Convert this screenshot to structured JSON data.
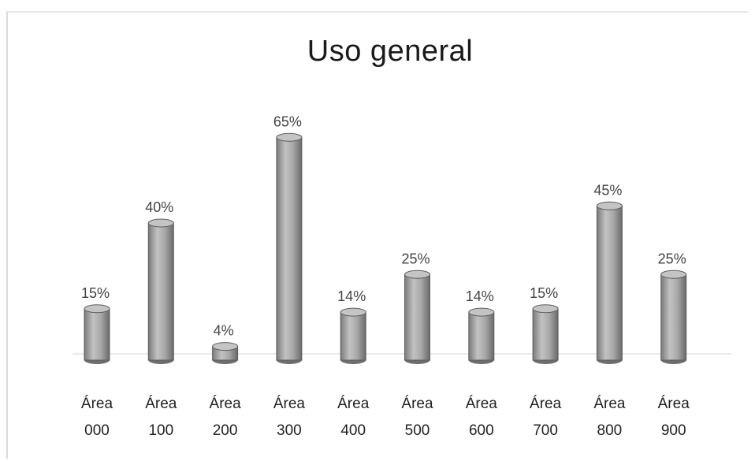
{
  "chart_data": {
    "type": "bar",
    "title": "Uso general",
    "xlabel": "",
    "ylabel": "",
    "ylim": [
      0,
      70
    ],
    "grid": false,
    "legend": "none",
    "categories": [
      [
        "Área",
        "000"
      ],
      [
        "Área",
        "100"
      ],
      [
        "Área",
        "200"
      ],
      [
        "Área",
        "300"
      ],
      [
        "Área",
        "400"
      ],
      [
        "Área",
        "500"
      ],
      [
        "Área",
        "600"
      ],
      [
        "Área",
        "700"
      ],
      [
        "Área",
        "800"
      ],
      [
        "Área",
        "900"
      ]
    ],
    "values": [
      15,
      40,
      4,
      65,
      14,
      25,
      14,
      15,
      45,
      25
    ],
    "value_labels": [
      "15%",
      "40%",
      "4%",
      "65%",
      "14%",
      "25%",
      "14%",
      "15%",
      "45%",
      "25%"
    ],
    "colors": {
      "bar": "#9a9a9a",
      "bar_highlight": "#c4c4c4",
      "bar_shadow": "#6e6e6e"
    }
  }
}
